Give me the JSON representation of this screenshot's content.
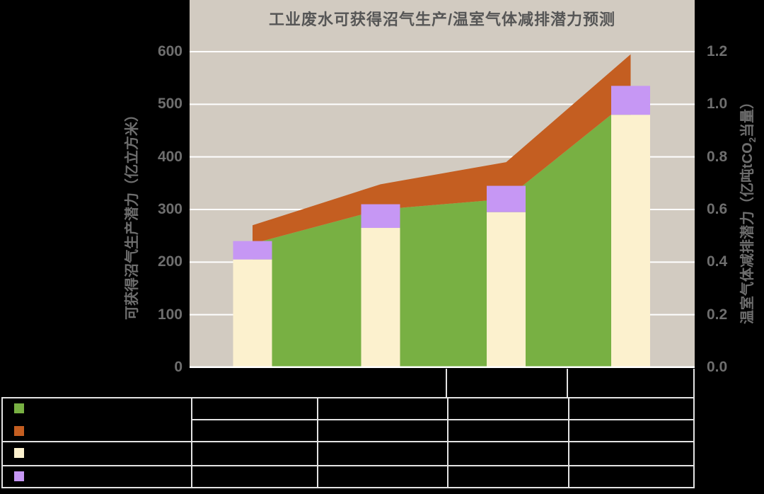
{
  "chart_data": {
    "type": "combo-area-bar",
    "title": "工业废水可获得沼气生产/温室气体减排潜力预测",
    "categories": [
      "",
      "",
      "",
      ""
    ],
    "categories_note": "category labels are not visible (black text on black background)",
    "left_axis": {
      "title": "可获得沼气生产潜力（亿立方米）",
      "min": 0,
      "max": 600,
      "tick_labels": [
        "0",
        "100",
        "200",
        "300",
        "400",
        "500",
        "600"
      ]
    },
    "right_axis": {
      "title_prefix": "温室气体减排潜力（亿吨tCO",
      "title_sub": "2",
      "title_suffix": "当量）",
      "min": 0.0,
      "max": 1.2,
      "tick_labels": [
        "0.0",
        "0.2",
        "0.4",
        "0.6",
        "0.8",
        "1.0",
        "1.2"
      ]
    },
    "series": [
      {
        "id": "green-area",
        "type": "area",
        "axis": "left",
        "color": "#78B043",
        "values": [
          235,
          300,
          320,
          510
        ]
      },
      {
        "id": "orange-band",
        "type": "area-band",
        "axis": "left",
        "color": "#C45E21",
        "top_values": [
          270,
          348,
          390,
          595
        ]
      },
      {
        "id": "cream-bar",
        "type": "bar",
        "axis": "right",
        "color": "#FCF1CE",
        "values": [
          0.41,
          0.53,
          0.59,
          0.96
        ]
      },
      {
        "id": "purple-cap",
        "type": "bar-segment",
        "axis": "right",
        "color": "#C697F4",
        "from_values": [
          0.41,
          0.53,
          0.59,
          0.96
        ],
        "top_values": [
          0.48,
          0.62,
          0.69,
          1.07
        ]
      }
    ],
    "legend": {
      "position": "data-table-left-column",
      "items": [
        {
          "id": "green-area",
          "color": "#78B043"
        },
        {
          "id": "orange-band",
          "color": "#C45E21"
        },
        {
          "id": "cream-bar",
          "color": "#FCF1CE"
        },
        {
          "id": "purple-cap",
          "color": "#C697F4"
        }
      ]
    },
    "grid": {
      "horizontal": true,
      "interval_left_units": 100,
      "color": "#FFFFFF"
    },
    "data_table": {
      "visible": true,
      "rows": 4,
      "columns": 4,
      "cell_text_visible": false
    }
  },
  "colors": {
    "background": "#000000",
    "plot_bg": "#D2CBC1",
    "gridline": "#FFFFFF",
    "axis_line": "#FFFFFF",
    "axis_text": "#6E6E6E",
    "title_text": "#565656",
    "table_border": "#E3E3E3"
  }
}
